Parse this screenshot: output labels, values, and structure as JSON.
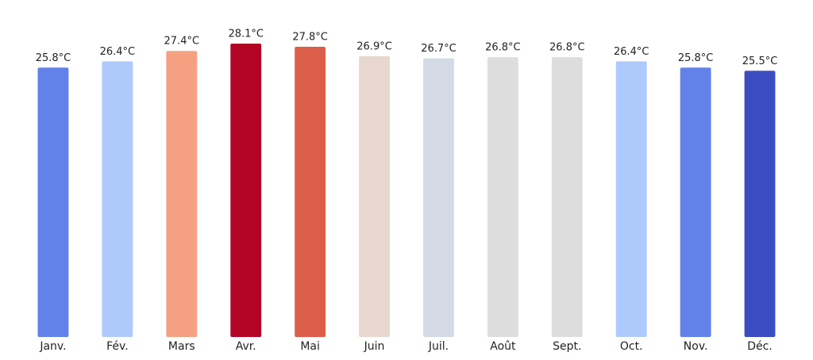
{
  "chart_data": {
    "type": "bar",
    "categories": [
      "Janv.",
      "Fév.",
      "Mars",
      "Avr.",
      "Mai",
      "Juin",
      "Juil.",
      "Août",
      "Sept.",
      "Oct.",
      "Nov.",
      "Déc."
    ],
    "values": [
      25.8,
      26.4,
      27.4,
      28.1,
      27.8,
      26.9,
      26.7,
      26.8,
      26.8,
      26.4,
      25.8,
      25.5
    ],
    "value_labels": [
      "25.8°C",
      "26.4°C",
      "27.4°C",
      "28.1°C",
      "27.8°C",
      "26.9°C",
      "26.7°C",
      "26.8°C",
      "26.8°C",
      "26.4°C",
      "25.8°C",
      "25.5°C"
    ],
    "colors": [
      "#6282ea",
      "#aec9fc",
      "#f5a081",
      "#b40426",
      "#dc5d4a",
      "#e7d7ce",
      "#d4dbe6",
      "#dddddd",
      "#dddddd",
      "#aec9fc",
      "#6282ea",
      "#3b4cc0"
    ],
    "ylim": [
      0,
      30
    ]
  }
}
